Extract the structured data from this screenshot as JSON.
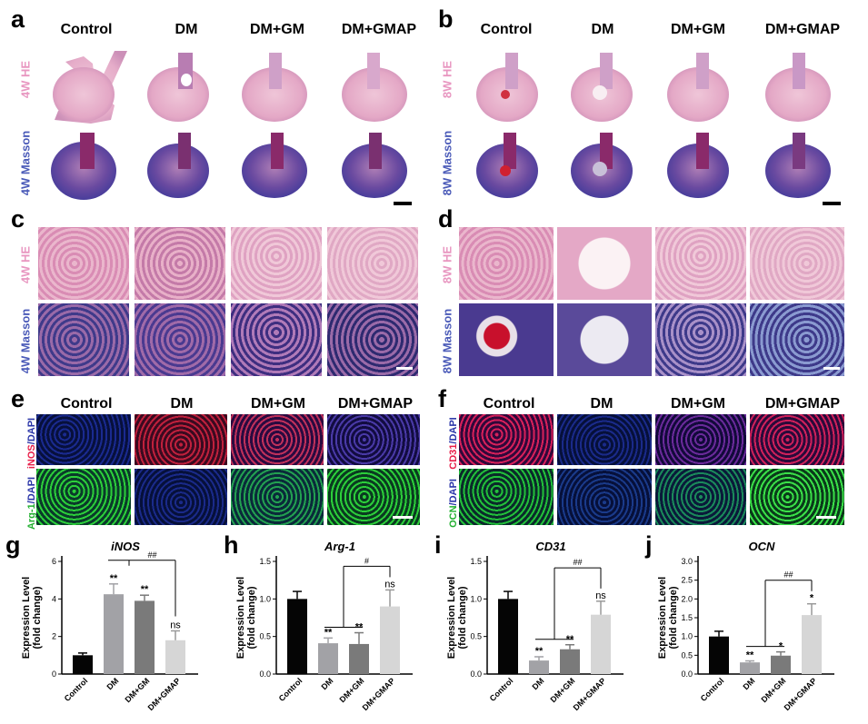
{
  "panel_letters": [
    "a",
    "b",
    "c",
    "d",
    "e",
    "f",
    "g",
    "h",
    "i",
    "j"
  ],
  "groups": [
    "Control",
    "DM",
    "DM+GM",
    "DM+GMAP"
  ],
  "row_labels": {
    "hw4": "4W  HE",
    "mw4": "4W Masson",
    "hw8": "8W  HE",
    "mw8": "8W Masson",
    "inos_a": "iNOS",
    "inos_b": "/DAPI",
    "arg_a": "Arg-1",
    "arg_b": "/DAPI",
    "cd31_a": "CD31",
    "cd31_b": "/DAPI",
    "ocn_a": "OCN",
    "ocn_b": "/DAPI"
  },
  "colors": {
    "he": "#e7a9c4",
    "masson": "#5a58b3",
    "red_stain": "#d82850",
    "green_stain": "#2ccf3a",
    "dapi": "#2a35a8",
    "bar_control": "#050505",
    "bar_dm": "#a2a2a6",
    "bar_dmgm": "#7a7a7a",
    "bar_dmgmap": "#d6d6d6"
  },
  "chart_data": [
    {
      "type": "bar",
      "title": "iNOS",
      "ylabel": "Expression Level (fold change)",
      "categories": [
        "Control",
        "DM",
        "DM+GM",
        "DM+GMAP"
      ],
      "values": [
        1.0,
        4.25,
        3.9,
        1.8
      ],
      "errors": [
        0.12,
        0.55,
        0.3,
        0.5
      ],
      "yticks": [
        "0",
        "2",
        "4",
        "6"
      ],
      "ylim": [
        0,
        6
      ],
      "sig": [
        "",
        "**",
        "**",
        "ns"
      ],
      "bracket": "##"
    },
    {
      "type": "bar",
      "title": "Arg-1",
      "ylabel": "Expression Level (fold change)",
      "categories": [
        "Control",
        "DM",
        "DM+GM",
        "DM+GMAP"
      ],
      "values": [
        1.0,
        0.41,
        0.4,
        0.9
      ],
      "errors": [
        0.1,
        0.07,
        0.15,
        0.22
      ],
      "yticks": [
        "0.0",
        "0.5",
        "1.0",
        "1.5"
      ],
      "ylim": [
        0,
        1.5
      ],
      "sig": [
        "",
        "**",
        "**",
        "ns"
      ],
      "bracket": "#"
    },
    {
      "type": "bar",
      "title": "CD31",
      "ylabel": "Expression Level (fold change)",
      "categories": [
        "Control",
        "DM",
        "DM+GM",
        "DM+GMAP"
      ],
      "values": [
        1.0,
        0.18,
        0.33,
        0.79
      ],
      "errors": [
        0.1,
        0.05,
        0.06,
        0.18
      ],
      "yticks": [
        "0.0",
        "0.5",
        "1.0",
        "1.5"
      ],
      "ylim": [
        0,
        1.5
      ],
      "sig": [
        "",
        "**",
        "**",
        "ns"
      ],
      "bracket": "##"
    },
    {
      "type": "bar",
      "title": "OCN",
      "ylabel": "Expression Level (fold change)",
      "categories": [
        "Control",
        "DM",
        "DM+GM",
        "DM+GMAP"
      ],
      "values": [
        1.0,
        0.31,
        0.49,
        1.57
      ],
      "errors": [
        0.14,
        0.04,
        0.1,
        0.3
      ],
      "yticks": [
        "0.0",
        "0.5",
        "1.0",
        "1.5",
        "2.0",
        "2.5",
        "3.0"
      ],
      "ylim": [
        0,
        3.0
      ],
      "sig": [
        "",
        "**",
        "*",
        "*"
      ],
      "bracket": "##"
    }
  ]
}
